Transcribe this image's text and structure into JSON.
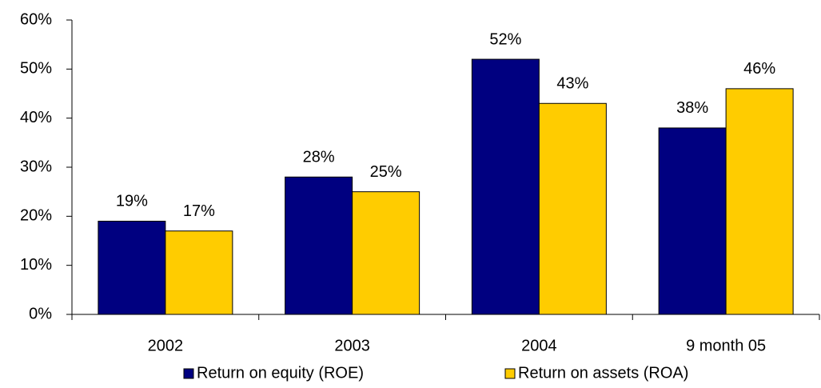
{
  "chart_data": {
    "type": "bar",
    "categories": [
      "2002",
      "2003",
      "2004",
      "9 month 05"
    ],
    "series": [
      {
        "name": "Return on equity (ROE)",
        "color": "#000080",
        "values": [
          19,
          28,
          52,
          38
        ],
        "value_labels": [
          "19%",
          "28%",
          "52%",
          "38%"
        ]
      },
      {
        "name": "Return on assets (ROA)",
        "color": "#ffcc00",
        "values": [
          17,
          25,
          43,
          46
        ],
        "value_labels": [
          "17%",
          "25%",
          "43%",
          "46%"
        ]
      }
    ],
    "ylim": [
      0,
      60
    ],
    "yticks": [
      {
        "value": 0,
        "label": "0%"
      },
      {
        "value": 10,
        "label": "10%"
      },
      {
        "value": 20,
        "label": "20%"
      },
      {
        "value": 30,
        "label": "30%"
      },
      {
        "value": 40,
        "label": "40%"
      },
      {
        "value": 50,
        "label": "50%"
      },
      {
        "value": 60,
        "label": "60%"
      }
    ],
    "grid": false,
    "legend": "bottom"
  }
}
